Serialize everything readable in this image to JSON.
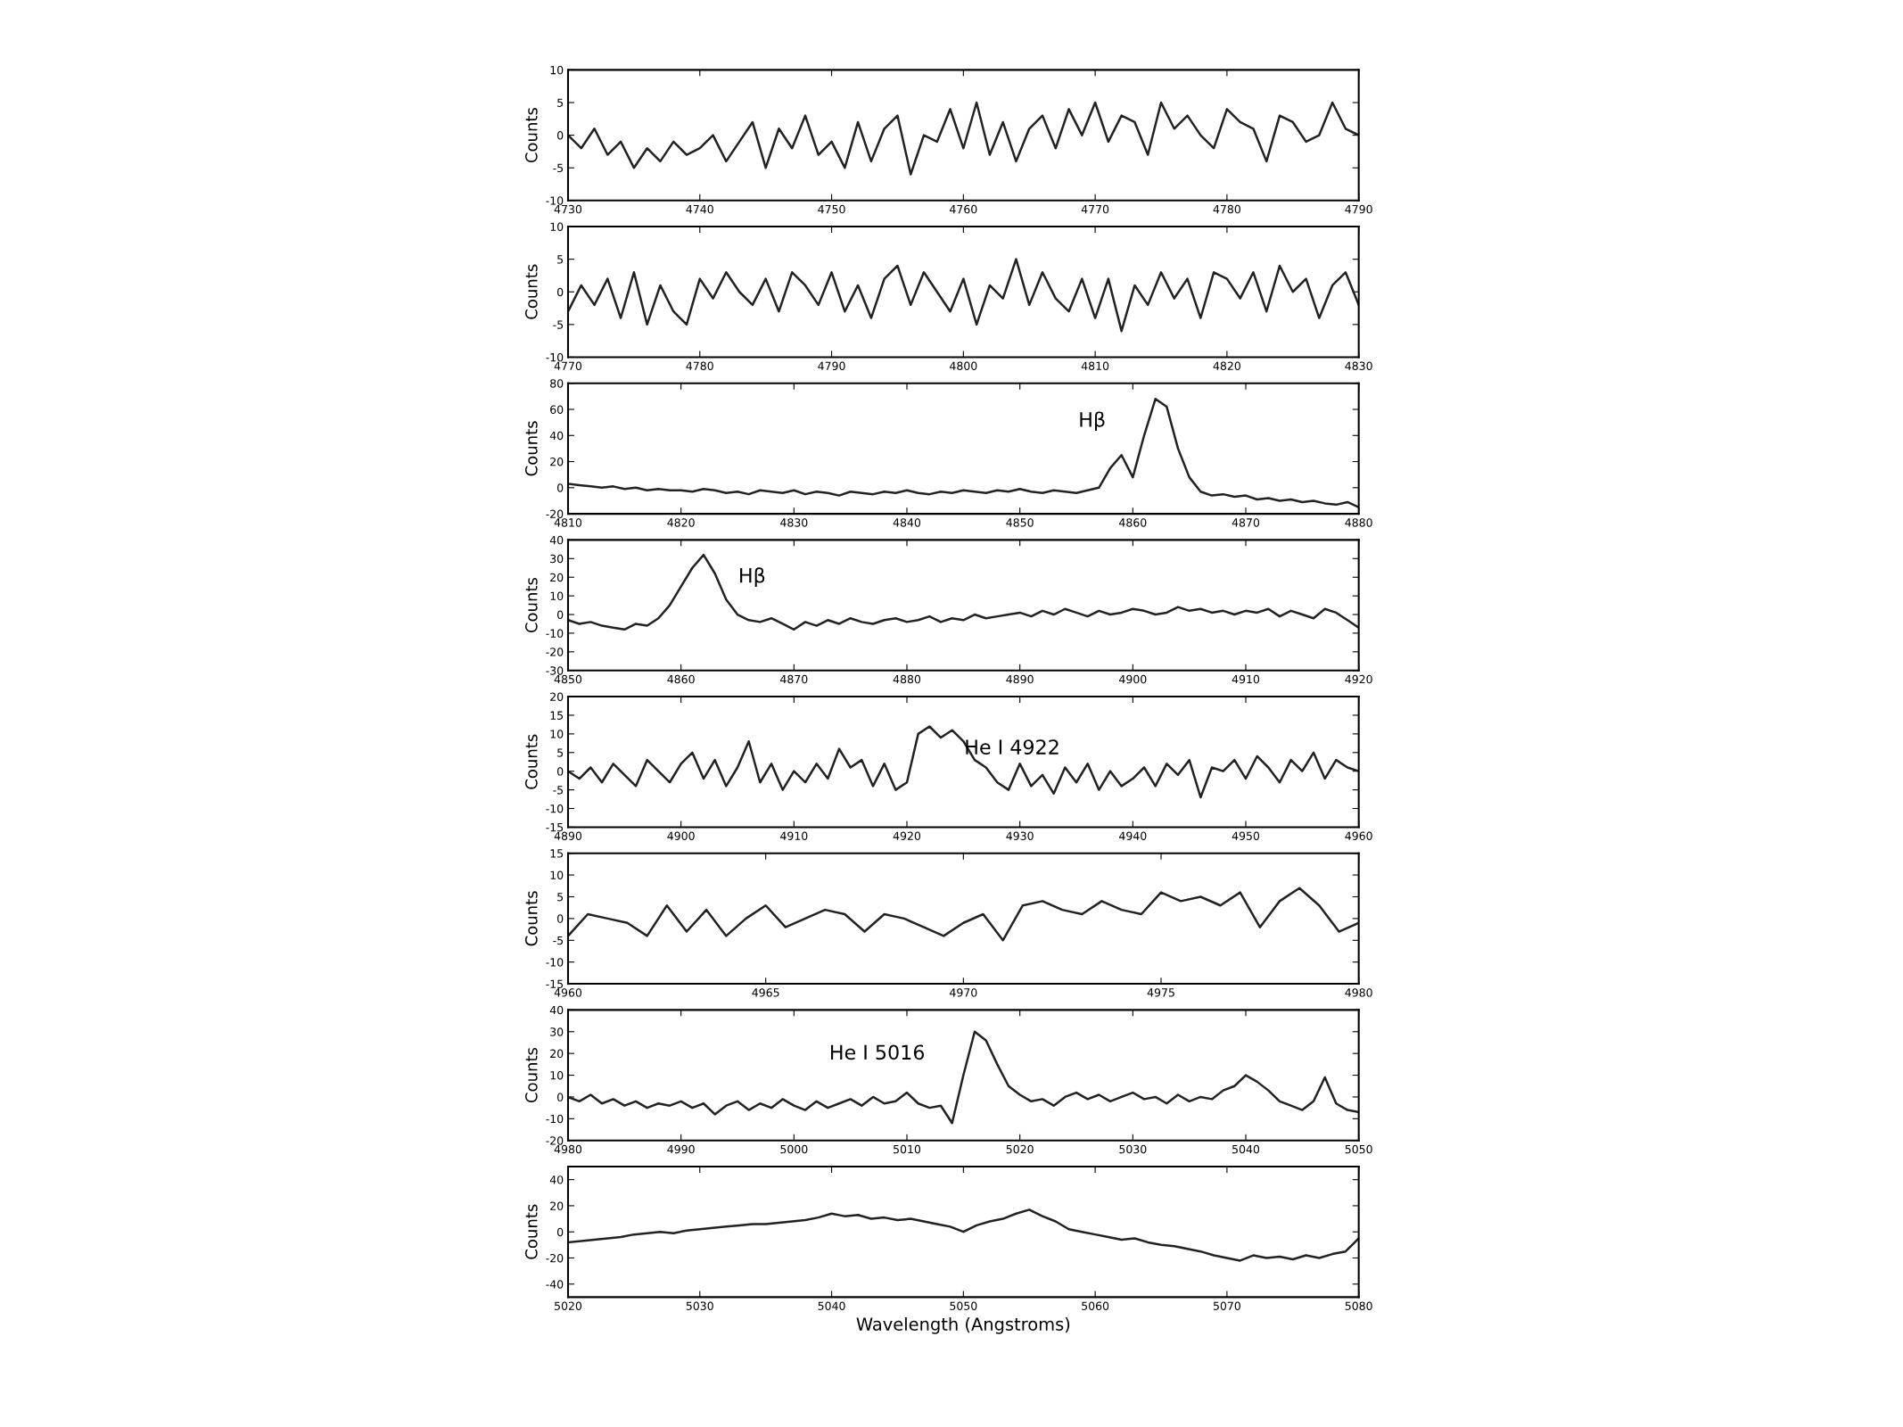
{
  "chart_data": [
    {
      "type": "line",
      "ylabel": "Counts",
      "xlim": [
        4730,
        4790
      ],
      "xticks": [
        4730,
        4740,
        4750,
        4760,
        4770,
        4780,
        4790
      ],
      "ylim": [
        -10,
        10
      ],
      "yticks": [
        -10,
        -5,
        0,
        5,
        10
      ],
      "grid": false,
      "series": [
        {
          "color": "#222222",
          "x": [
            4730,
            4731,
            4732,
            4733,
            4734,
            4735,
            4736,
            4737,
            4738,
            4739,
            4740,
            4741,
            4742,
            4743,
            4744,
            4745,
            4746,
            4747,
            4748,
            4749,
            4750,
            4751,
            4752,
            4753,
            4754,
            4755,
            4756,
            4757,
            4758,
            4759,
            4760,
            4761,
            4762,
            4763,
            4764,
            4765,
            4766,
            4767,
            4768,
            4769,
            4770,
            4771,
            4772,
            4773,
            4774,
            4775,
            4776,
            4777,
            4778,
            4779,
            4780,
            4781,
            4782,
            4783,
            4784,
            4785,
            4786,
            4787,
            4788,
            4789,
            4790
          ],
          "values": [
            0,
            -2,
            1,
            -3,
            -1,
            -5,
            -2,
            -4,
            -1,
            -3,
            -2,
            0,
            -4,
            -1,
            2,
            -5,
            1,
            -2,
            3,
            -3,
            -1,
            -5,
            2,
            -4,
            1,
            3,
            -6,
            0,
            -1,
            4,
            -2,
            5,
            -3,
            2,
            -4,
            1,
            3,
            -2,
            4,
            0,
            5,
            -1,
            3,
            2,
            -3,
            5,
            1,
            3,
            0,
            -2,
            4,
            2,
            1,
            -4,
            3,
            2,
            -1,
            0,
            5,
            1,
            0
          ]
        }
      ]
    },
    {
      "type": "line",
      "ylabel": "Counts",
      "xlim": [
        4770,
        4830
      ],
      "xticks": [
        4770,
        4780,
        4790,
        4800,
        4810,
        4820,
        4830
      ],
      "ylim": [
        -10,
        10
      ],
      "yticks": [
        -10,
        -5,
        0,
        5,
        10
      ],
      "grid": false,
      "series": [
        {
          "color": "#222222",
          "x": [
            4770,
            4771,
            4772,
            4773,
            4774,
            4775,
            4776,
            4777,
            4778,
            4779,
            4780,
            4781,
            4782,
            4783,
            4784,
            4785,
            4786,
            4787,
            4788,
            4789,
            4790,
            4791,
            4792,
            4793,
            4794,
            4795,
            4796,
            4797,
            4798,
            4799,
            4800,
            4801,
            4802,
            4803,
            4804,
            4805,
            4806,
            4807,
            4808,
            4809,
            4810,
            4811,
            4812,
            4813,
            4814,
            4815,
            4816,
            4817,
            4818,
            4819,
            4820,
            4821,
            4822,
            4823,
            4824,
            4825,
            4826,
            4827,
            4828,
            4829,
            4830
          ],
          "values": [
            -3,
            1,
            -2,
            2,
            -4,
            3,
            -5,
            1,
            -3,
            -5,
            2,
            -1,
            3,
            0,
            -2,
            2,
            -3,
            3,
            1,
            -2,
            3,
            -3,
            1,
            -4,
            2,
            4,
            -2,
            3,
            0,
            -3,
            2,
            -5,
            1,
            -1,
            5,
            -2,
            3,
            -1,
            -3,
            2,
            -4,
            2,
            -6,
            1,
            -2,
            3,
            -1,
            2,
            -4,
            3,
            2,
            -1,
            3,
            -3,
            4,
            0,
            2,
            -4,
            1,
            3,
            -2
          ]
        }
      ]
    },
    {
      "type": "line",
      "ylabel": "Counts",
      "xlim": [
        4810,
        4880
      ],
      "xticks": [
        4810,
        4820,
        4830,
        4840,
        4850,
        4860,
        4870,
        4880
      ],
      "ylim": [
        -20,
        80
      ],
      "yticks": [
        -20,
        0,
        20,
        40,
        60,
        80
      ],
      "grid": false,
      "annotations": [
        "Hβ"
      ],
      "series": [
        {
          "color": "#222222",
          "x": [
            4810,
            4811,
            4812,
            4813,
            4814,
            4815,
            4816,
            4817,
            4818,
            4819,
            4820,
            4821,
            4822,
            4823,
            4824,
            4825,
            4826,
            4827,
            4828,
            4829,
            4830,
            4831,
            4832,
            4833,
            4834,
            4835,
            4836,
            4837,
            4838,
            4839,
            4840,
            4841,
            4842,
            4843,
            4844,
            4845,
            4846,
            4847,
            4848,
            4849,
            4850,
            4851,
            4852,
            4853,
            4854,
            4855,
            4856,
            4857,
            4858,
            4859,
            4860,
            4861,
            4862,
            4863,
            4864,
            4865,
            4866,
            4867,
            4868,
            4869,
            4870,
            4871,
            4872,
            4873,
            4874,
            4875,
            4876,
            4877,
            4878,
            4879,
            4880
          ],
          "values": [
            3,
            2,
            1,
            0,
            1,
            -1,
            0,
            -2,
            -1,
            -2,
            -2,
            -3,
            -1,
            -2,
            -4,
            -3,
            -5,
            -2,
            -3,
            -4,
            -2,
            -5,
            -3,
            -4,
            -6,
            -3,
            -4,
            -5,
            -3,
            -4,
            -2,
            -4,
            -5,
            -3,
            -4,
            -2,
            -3,
            -4,
            -2,
            -3,
            -1,
            -3,
            -4,
            -2,
            -3,
            -4,
            -2,
            0,
            15,
            25,
            8,
            40,
            68,
            62,
            30,
            8,
            -3,
            -6,
            -5,
            -7,
            -6,
            -9,
            -8,
            -10,
            -9,
            -11,
            -10,
            -12,
            -13,
            -11,
            -15
          ]
        }
      ]
    },
    {
      "type": "line",
      "ylabel": "Counts",
      "xlim": [
        4850,
        4920
      ],
      "xticks": [
        4850,
        4860,
        4870,
        4880,
        4890,
        4900,
        4910,
        4920
      ],
      "ylim": [
        -30,
        40
      ],
      "yticks": [
        -30,
        -20,
        -10,
        0,
        10,
        20,
        30,
        40
      ],
      "grid": false,
      "annotations": [
        "Hβ"
      ],
      "series": [
        {
          "color": "#222222",
          "x": [
            4850,
            4851,
            4852,
            4853,
            4854,
            4855,
            4856,
            4857,
            4858,
            4859,
            4860,
            4861,
            4862,
            4863,
            4864,
            4865,
            4866,
            4867,
            4868,
            4869,
            4870,
            4871,
            4872,
            4873,
            4874,
            4875,
            4876,
            4877,
            4878,
            4879,
            4880,
            4881,
            4882,
            4883,
            4884,
            4885,
            4886,
            4887,
            4888,
            4889,
            4890,
            4891,
            4892,
            4893,
            4894,
            4895,
            4896,
            4897,
            4898,
            4899,
            4900,
            4901,
            4902,
            4903,
            4904,
            4905,
            4906,
            4907,
            4908,
            4909,
            4910,
            4911,
            4912,
            4913,
            4914,
            4915,
            4916,
            4917,
            4918,
            4919,
            4920
          ],
          "values": [
            -3,
            -5,
            -4,
            -6,
            -7,
            -8,
            -5,
            -6,
            -2,
            5,
            15,
            25,
            32,
            22,
            8,
            0,
            -3,
            -4,
            -2,
            -5,
            -8,
            -4,
            -6,
            -3,
            -5,
            -2,
            -4,
            -5,
            -3,
            -2,
            -4,
            -3,
            -1,
            -4,
            -2,
            -3,
            0,
            -2,
            -1,
            0,
            1,
            -1,
            2,
            0,
            3,
            1,
            -1,
            2,
            0,
            1,
            3,
            2,
            0,
            1,
            4,
            2,
            3,
            1,
            2,
            0,
            2,
            1,
            3,
            -1,
            2,
            0,
            -2,
            3,
            1,
            -3,
            -7
          ]
        }
      ]
    },
    {
      "type": "line",
      "ylabel": "Counts",
      "xlim": [
        4890,
        4960
      ],
      "xticks": [
        4890,
        4900,
        4910,
        4920,
        4930,
        4940,
        4950,
        4960
      ],
      "ylim": [
        -15,
        20
      ],
      "yticks": [
        -15,
        -10,
        -5,
        0,
        5,
        10,
        15,
        20
      ],
      "grid": false,
      "annotations": [
        "He I 4922"
      ],
      "series": [
        {
          "color": "#222222",
          "x": [
            4890,
            4891,
            4892,
            4893,
            4894,
            4895,
            4896,
            4897,
            4898,
            4899,
            4900,
            4901,
            4902,
            4903,
            4904,
            4905,
            4906,
            4907,
            4908,
            4909,
            4910,
            4911,
            4912,
            4913,
            4914,
            4915,
            4916,
            4917,
            4918,
            4919,
            4920,
            4921,
            4922,
            4923,
            4924,
            4925,
            4926,
            4927,
            4928,
            4929,
            4930,
            4931,
            4932,
            4933,
            4934,
            4935,
            4936,
            4937,
            4938,
            4939,
            4940,
            4941,
            4942,
            4943,
            4944,
            4945,
            4946,
            4947,
            4948,
            4949,
            4950,
            4951,
            4952,
            4953,
            4954,
            4955,
            4956,
            4957,
            4958,
            4959,
            4960
          ],
          "values": [
            0,
            -2,
            1,
            -3,
            2,
            -1,
            -4,
            3,
            0,
            -3,
            2,
            5,
            -2,
            3,
            -4,
            1,
            8,
            -3,
            2,
            -5,
            0,
            -3,
            2,
            -2,
            6,
            1,
            3,
            -4,
            2,
            -5,
            -3,
            10,
            12,
            9,
            11,
            8,
            3,
            1,
            -3,
            -5,
            2,
            -4,
            -1,
            -6,
            1,
            -3,
            2,
            -5,
            0,
            -4,
            -2,
            1,
            -4,
            2,
            -1,
            3,
            -7,
            1,
            0,
            3,
            -2,
            4,
            1,
            -3,
            3,
            0,
            5,
            -2,
            3,
            1,
            0
          ]
        }
      ]
    },
    {
      "type": "line",
      "ylabel": "Counts",
      "xlim": [
        4960,
        4980
      ],
      "xticks": [
        4960,
        4965,
        4970,
        4975,
        4980
      ],
      "ylim": [
        -15,
        15
      ],
      "yticks": [
        -15,
        -10,
        -5,
        0,
        5,
        10,
        15
      ],
      "grid": false,
      "series": [
        {
          "color": "#222222",
          "x": [
            4960,
            4960.5,
            4961,
            4961.5,
            4962,
            4962.5,
            4963,
            4963.5,
            4964,
            4964.5,
            4965,
            4965.5,
            4966,
            4966.5,
            4967,
            4967.5,
            4968,
            4968.5,
            4969,
            4969.5,
            4970,
            4970.5,
            4971,
            4971.5,
            4972,
            4972.5,
            4973,
            4973.5,
            4974,
            4974.5,
            4975,
            4975.5,
            4976,
            4976.5,
            4977,
            4977.5,
            4978,
            4978.5,
            4979,
            4979.5,
            4980
          ],
          "values": [
            -4,
            1,
            0,
            -1,
            -4,
            3,
            -3,
            2,
            -4,
            0,
            3,
            -2,
            0,
            2,
            1,
            -3,
            1,
            0,
            -2,
            -4,
            -1,
            1,
            -5,
            3,
            4,
            2,
            1,
            4,
            2,
            1,
            6,
            4,
            5,
            3,
            6,
            -2,
            4,
            7,
            3,
            -3,
            -1
          ]
        }
      ]
    },
    {
      "type": "line",
      "ylabel": "Counts",
      "xlim": [
        4980,
        5050
      ],
      "xticks": [
        4980,
        4990,
        5000,
        5010,
        5020,
        5030,
        5040,
        5050
      ],
      "ylim": [
        -20,
        40
      ],
      "yticks": [
        -20,
        -10,
        0,
        10,
        20,
        30,
        40
      ],
      "grid": false,
      "annotations": [
        "He I 5016"
      ],
      "series": [
        {
          "color": "#222222",
          "x": [
            4980,
            4981,
            4982,
            4983,
            4984,
            4985,
            4986,
            4987,
            4988,
            4989,
            4990,
            4991,
            4992,
            4993,
            4994,
            4995,
            4996,
            4997,
            4998,
            4999,
            5000,
            5001,
            5002,
            5003,
            5004,
            5005,
            5006,
            5007,
            5008,
            5009,
            5010,
            5011,
            5012,
            5013,
            5014,
            5015,
            5016,
            5017,
            5018,
            5019,
            5020,
            5021,
            5022,
            5023,
            5024,
            5025,
            5026,
            5027,
            5028,
            5029,
            5030,
            5031,
            5032,
            5033,
            5034,
            5035,
            5036,
            5037,
            5038,
            5039,
            5040,
            5041,
            5042,
            5043,
            5044,
            5045,
            5046,
            5047,
            5048,
            5049,
            5050
          ],
          "values": [
            0,
            -2,
            1,
            -3,
            -1,
            -4,
            -2,
            -5,
            -3,
            -4,
            -2,
            -5,
            -3,
            -8,
            -4,
            -2,
            -6,
            -3,
            -5,
            -1,
            -4,
            -6,
            -2,
            -5,
            -3,
            -1,
            -4,
            0,
            -3,
            -2,
            2,
            -3,
            -5,
            -4,
            -12,
            10,
            30,
            26,
            15,
            5,
            1,
            -2,
            -1,
            -4,
            0,
            2,
            -1,
            1,
            -2,
            0,
            2,
            -1,
            0,
            -3,
            1,
            -2,
            0,
            -1,
            3,
            5,
            10,
            7,
            3,
            -2,
            -4,
            -6,
            -2,
            9,
            -3,
            -6,
            -7
          ]
        }
      ]
    },
    {
      "type": "line",
      "ylabel": "Counts",
      "xlabel": "Wavelength (Angstroms)",
      "xlim": [
        5020,
        5080
      ],
      "xticks": [
        5020,
        5030,
        5040,
        5050,
        5060,
        5070,
        5080
      ],
      "ylim": [
        -50,
        50
      ],
      "yticks": [
        -40,
        -20,
        0,
        20,
        40
      ],
      "grid": false,
      "series": [
        {
          "color": "#222222",
          "x": [
            5020,
            5021,
            5022,
            5023,
            5024,
            5025,
            5026,
            5027,
            5028,
            5029,
            5030,
            5031,
            5032,
            5033,
            5034,
            5035,
            5036,
            5037,
            5038,
            5039,
            5040,
            5041,
            5042,
            5043,
            5044,
            5045,
            5046,
            5047,
            5048,
            5049,
            5050,
            5051,
            5052,
            5053,
            5054,
            5055,
            5056,
            5057,
            5058,
            5059,
            5060,
            5061,
            5062,
            5063,
            5064,
            5065,
            5066,
            5067,
            5068,
            5069,
            5070,
            5071,
            5072,
            5073,
            5074,
            5075,
            5076,
            5077,
            5078,
            5079,
            5080
          ],
          "values": [
            -8,
            -7,
            -6,
            -5,
            -4,
            -2,
            -1,
            0,
            -1,
            1,
            2,
            3,
            4,
            5,
            6,
            6,
            7,
            8,
            9,
            11,
            14,
            12,
            13,
            10,
            11,
            9,
            10,
            8,
            6,
            4,
            0,
            5,
            8,
            10,
            14,
            17,
            12,
            8,
            2,
            0,
            -2,
            -4,
            -6,
            -5,
            -8,
            -10,
            -11,
            -13,
            -15,
            -18,
            -20,
            -22,
            -18,
            -20,
            -19,
            -21,
            -18,
            -20,
            -17,
            -15,
            -5
          ]
        }
      ]
    }
  ]
}
